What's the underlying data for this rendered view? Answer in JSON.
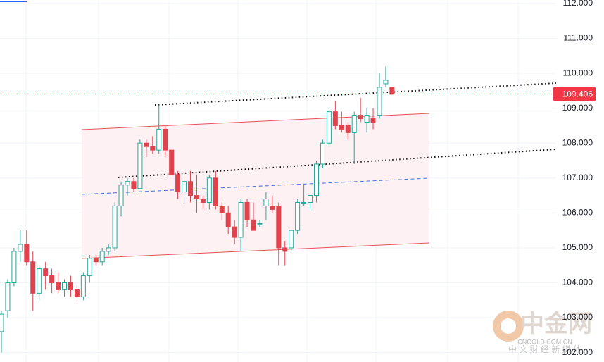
{
  "chart_data": {
    "type": "candlestick",
    "categories": [
      null,
      null,
      null,
      null,
      null,
      null,
      null,
      null,
      null,
      null,
      null,
      null,
      null,
      null,
      null,
      null,
      null,
      null,
      null,
      null,
      null,
      null,
      null,
      null,
      null,
      null,
      null,
      null,
      null,
      null,
      null,
      null,
      null,
      null,
      null,
      null,
      null,
      null,
      null,
      null,
      null,
      null,
      null,
      null,
      null,
      null,
      null,
      null,
      null,
      null,
      null,
      null,
      null,
      null,
      null,
      null,
      null,
      null,
      null,
      null,
      null,
      null,
      null
    ],
    "series": [
      {
        "up_color": "#26a69a",
        "down_color": "#e0434d",
        "open": [
          102.6,
          103.2,
          104.0,
          104.9,
          105.1,
          104.6,
          103.7,
          104.4,
          104.2,
          104.0,
          103.8,
          104.0,
          103.8,
          103.6,
          104.2,
          104.7,
          104.6,
          104.9,
          105.0,
          106.2,
          106.8,
          106.9,
          106.7,
          108.0,
          107.9,
          107.8,
          108.4,
          107.8,
          107.1,
          106.6,
          106.9,
          106.5,
          106.4,
          106.3,
          107.0,
          106.2,
          106.0,
          105.6,
          105.3,
          106.3,
          105.8,
          105.7,
          106.2,
          106.2,
          106.2,
          105.0,
          105.0,
          105.5,
          106.3,
          106.3,
          106.5,
          107.4,
          108.0,
          108.9,
          108.5,
          108.5,
          108.3,
          108.8,
          108.6,
          108.7,
          108.8,
          109.7,
          109.6
        ],
        "high": [
          103.2,
          104.1,
          105.0,
          105.5,
          105.5,
          104.9,
          104.5,
          104.6,
          104.4,
          104.3,
          104.1,
          104.2,
          104.0,
          104.3,
          104.8,
          104.8,
          105.0,
          105.1,
          106.3,
          106.9,
          107.0,
          107.0,
          108.1,
          108.1,
          108.2,
          109.1,
          108.5,
          107.8,
          107.2,
          107.0,
          107.2,
          107.1,
          106.5,
          107.1,
          107.2,
          106.3,
          106.2,
          105.8,
          106.4,
          106.4,
          106.3,
          105.8,
          106.6,
          106.5,
          106.3,
          105.2,
          105.5,
          106.4,
          106.8,
          106.5,
          107.5,
          108.1,
          109.0,
          109.2,
          108.9,
          108.6,
          108.9,
          109.3,
          109.0,
          109.0,
          110.0,
          110.2,
          109.6
        ],
        "low": [
          102.0,
          103.0,
          103.9,
          104.6,
          104.5,
          103.2,
          103.5,
          103.8,
          103.7,
          103.7,
          103.6,
          103.6,
          103.4,
          103.5,
          104.0,
          104.5,
          104.5,
          104.8,
          104.9,
          105.9,
          106.5,
          106.6,
          106.7,
          107.6,
          107.7,
          107.7,
          107.6,
          107.1,
          106.4,
          106.2,
          106.3,
          106.0,
          106.1,
          106.1,
          106.1,
          105.8,
          105.4,
          105.1,
          104.9,
          105.6,
          105.5,
          105.6,
          105.8,
          106.0,
          104.5,
          104.5,
          104.9,
          105.4,
          106.2,
          106.1,
          106.3,
          107.3,
          107.9,
          108.4,
          108.3,
          108.1,
          107.4,
          108.6,
          108.3,
          108.4,
          108.7,
          109.6,
          109.4
        ],
        "close": [
          103.1,
          104.0,
          104.9,
          105.1,
          104.6,
          103.7,
          104.4,
          104.2,
          104.0,
          103.8,
          104.0,
          103.8,
          103.6,
          104.2,
          104.7,
          104.6,
          104.9,
          105.0,
          106.2,
          106.8,
          106.9,
          106.7,
          108.0,
          107.9,
          107.8,
          108.4,
          107.8,
          107.1,
          106.6,
          106.9,
          106.5,
          106.4,
          106.3,
          107.0,
          106.2,
          106.0,
          105.6,
          105.3,
          106.3,
          105.8,
          105.5,
          105.7,
          106.4,
          106.1,
          105.0,
          104.9,
          105.5,
          106.3,
          106.3,
          106.5,
          107.4,
          108.0,
          108.9,
          108.5,
          108.4,
          108.3,
          108.8,
          108.7,
          108.8,
          108.6,
          109.6,
          109.8,
          109.4
        ]
      }
    ],
    "ylim": [
      101.73,
      112.1
    ],
    "yticks": [
      {
        "value": 102,
        "label": "102.000"
      },
      {
        "value": 103,
        "label": "103.000"
      },
      {
        "value": 104,
        "label": "104.000"
      },
      {
        "value": 105,
        "label": "105.000"
      },
      {
        "value": 106,
        "label": "106.000"
      },
      {
        "value": 107,
        "label": "107.000"
      },
      {
        "value": 108,
        "label": "108.000"
      },
      {
        "value": 109,
        "label": "109.000"
      },
      {
        "value": 110,
        "label": "110.000"
      },
      {
        "value": 111,
        "label": "111.000"
      },
      {
        "value": 112,
        "label": "112.000"
      }
    ],
    "grid": true,
    "last_price": 109.406,
    "last_price_color": "#f23645"
  },
  "watermark": {
    "name": "中金网",
    "site": "CNGOLD.COM.CN",
    "slogan": "中 文 财 经 新 媒 体"
  }
}
